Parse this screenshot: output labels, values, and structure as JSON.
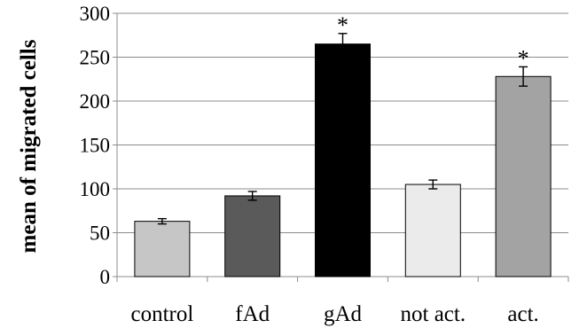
{
  "chart_data": {
    "type": "bar",
    "title": "",
    "xlabel": "",
    "ylabel": "mean of migrated cells",
    "ylim": [
      0,
      300
    ],
    "yticks": [
      0,
      50,
      100,
      150,
      200,
      250,
      300
    ],
    "grid": true,
    "categories": [
      "control",
      "fAd",
      "gAd",
      "not act.",
      "act."
    ],
    "values": [
      63,
      92,
      265,
      105,
      228
    ],
    "errors": [
      3,
      5,
      12,
      5,
      11
    ],
    "significance": [
      "",
      "",
      "*",
      "",
      "*"
    ],
    "colors": [
      "#c6c6c6",
      "#5a5a5a",
      "#000000",
      "#ebebeb",
      "#a3a3a3"
    ]
  }
}
